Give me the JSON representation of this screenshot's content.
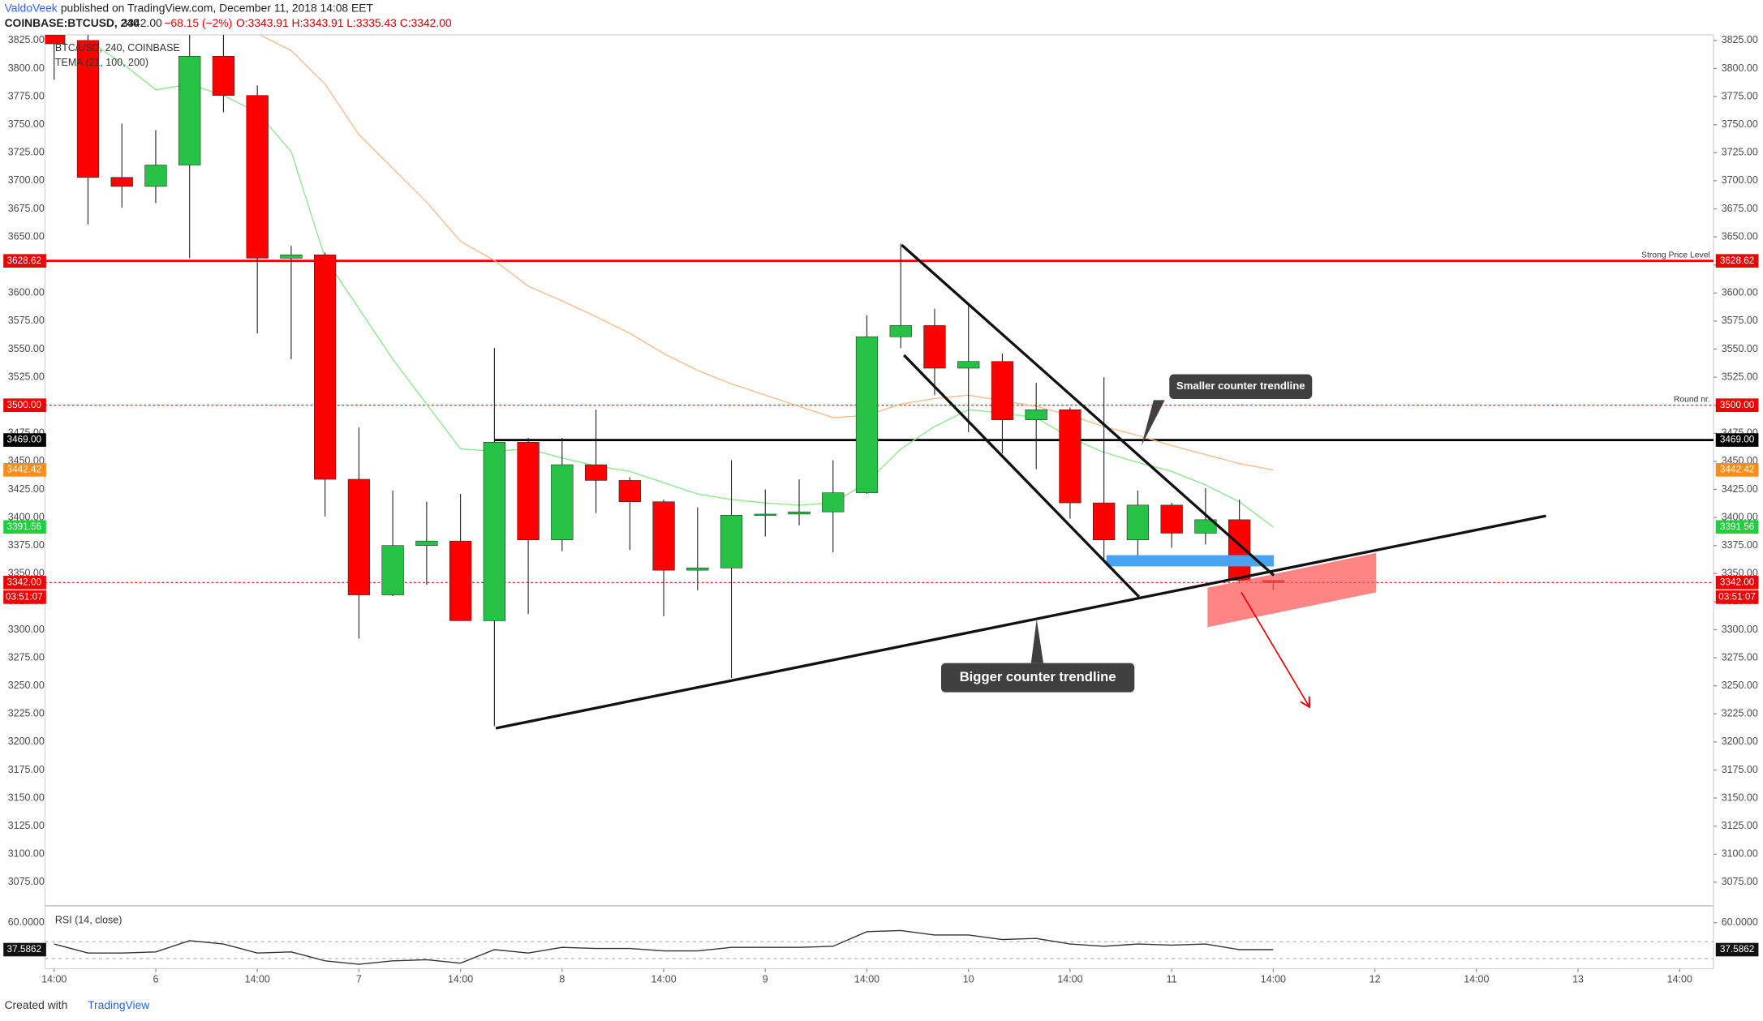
{
  "header": {
    "author": "ValdoVeek",
    "published": "published on TradingView.com, December 11, 2018 14:08 EET",
    "symbol": "COINBASE:BTCUSD, 240",
    "last": "3342.00",
    "change": "−68.15 (−2%)",
    "ohlc": "O:3343.91 H:3343.91 L:3335.43 C:3342.00"
  },
  "chart_data": [
    {
      "type": "candlestick",
      "title": "BTC/USD, 240, COINBASE",
      "subtitle": "TEMA (21, 100, 200)",
      "x": [
        0,
        1,
        2,
        3,
        4,
        5,
        6,
        7,
        8,
        9,
        10,
        11,
        12,
        13,
        14,
        15,
        16,
        17,
        18,
        19,
        20,
        21,
        22,
        23,
        24,
        25,
        26,
        27,
        28,
        29,
        30,
        31,
        32,
        33,
        34,
        35,
        36
      ],
      "open": [
        3830,
        3825,
        3703,
        3695,
        3714,
        3811,
        3776,
        3631,
        3634,
        3434,
        3331,
        3375,
        3379,
        3308,
        3467,
        3380,
        3447,
        3433,
        3414,
        3353,
        3355,
        3402,
        3403,
        3405,
        3422,
        3561,
        3571,
        3533,
        3539,
        3487,
        3496,
        3413,
        3380,
        3411,
        3386,
        3398,
        3343.91
      ],
      "high": [
        3840,
        3840,
        3751,
        3745,
        3840,
        3835,
        3785,
        3642,
        3636,
        3480,
        3424,
        3414,
        3421,
        3551,
        3471,
        3471,
        3496,
        3436,
        3416,
        3409,
        3451,
        3425,
        3434,
        3451,
        3580,
        3644,
        3586,
        3589,
        3546,
        3520,
        3498,
        3525,
        3424,
        3413,
        3426,
        3416,
        3343.91
      ],
      "low": [
        3790,
        3661,
        3676,
        3680,
        3631,
        3761,
        3564,
        3541,
        3401,
        3292,
        3330,
        3340,
        3308,
        3214,
        3314,
        3370,
        3404,
        3371,
        3312,
        3335,
        3257,
        3383,
        3393,
        3369,
        3421,
        3551,
        3509,
        3476,
        3457,
        3443,
        3399,
        3363,
        3365,
        3373,
        3376,
        3341,
        3335.43
      ],
      "close": [
        3822,
        3703,
        3695,
        3714,
        3811,
        3776,
        3631,
        3634,
        3434,
        3331,
        3375,
        3379,
        3308,
        3467,
        3380,
        3447,
        3433,
        3414,
        3353,
        3355,
        3402,
        3403,
        3405,
        3422,
        3561,
        3571,
        3533,
        3539,
        3487,
        3496,
        3413,
        3380,
        3411,
        3386,
        3398,
        3344,
        3342.0
      ],
      "up_color": "#26c245",
      "down_color": "#ff0000",
      "overlays": [
        {
          "color": "#8ee88e",
          "values": [
            null,
            3825,
            3805,
            3781,
            3786,
            3776,
            3761,
            3726,
            3631,
            3586,
            3541,
            3501,
            3461,
            3459,
            3461,
            3453,
            3446,
            3441,
            3431,
            3421,
            3416,
            3413,
            3411,
            3413,
            3431,
            3461,
            3481,
            3496,
            3493,
            3489,
            3471,
            3458,
            3449,
            3441,
            3429,
            3414,
            3391.56
          ],
          "last_label": "3391.56"
        },
        {
          "color": "#ffb98a",
          "values": [
            null,
            null,
            null,
            null,
            null,
            null,
            3831,
            3816,
            3786,
            3741,
            3711,
            3681,
            3646,
            3629,
            3606,
            3593,
            3579,
            3564,
            3546,
            3531,
            3519,
            3509,
            3499,
            3489,
            3491,
            3501,
            3506,
            3509,
            3504,
            3499,
            3491,
            3481,
            3473,
            3464,
            3456,
            3448,
            3442.42
          ],
          "last_label": "3442.42",
          "tag_color": "#ff8c1a"
        }
      ],
      "xlim": [
        -0.27,
        49.0
      ],
      "ylim": [
        3055,
        3830
      ],
      "yticks": [
        {
          "value": 3075,
          "label": "3075.00"
        },
        {
          "value": 3100,
          "label": "3100.00"
        },
        {
          "value": 3125,
          "label": "3125.00"
        },
        {
          "value": 3150,
          "label": "3150.00"
        },
        {
          "value": 3175,
          "label": "3175.00"
        },
        {
          "value": 3200,
          "label": "3200.00"
        },
        {
          "value": 3225,
          "label": "3225.00"
        },
        {
          "value": 3250,
          "label": "3250.00"
        },
        {
          "value": 3275,
          "label": "3275.00"
        },
        {
          "value": 3300,
          "label": "3300.00"
        },
        {
          "value": 3325,
          "label": "3325.00"
        },
        {
          "value": 3350,
          "label": "3350.00"
        },
        {
          "value": 3375,
          "label": "3375.00"
        },
        {
          "value": 3400,
          "label": "3400.00"
        },
        {
          "value": 3425,
          "label": "3425.00"
        },
        {
          "value": 3450,
          "label": "3450.00"
        },
        {
          "value": 3475,
          "label": "3475.00"
        },
        {
          "value": 3500,
          "label": "3500.00"
        },
        {
          "value": 3525,
          "label": "3525.00"
        },
        {
          "value": 3550,
          "label": "3550.00"
        },
        {
          "value": 3575,
          "label": "3575.00"
        },
        {
          "value": 3600,
          "label": "3600.00"
        },
        {
          "value": 3625,
          "label": "3625.00"
        },
        {
          "value": 3650,
          "label": "3650.00"
        },
        {
          "value": 3675,
          "label": "3675.00"
        },
        {
          "value": 3700,
          "label": "3700.00"
        },
        {
          "value": 3725,
          "label": "3725.00"
        },
        {
          "value": 3750,
          "label": "3750.00"
        },
        {
          "value": 3775,
          "label": "3775.00"
        },
        {
          "value": 3800,
          "label": "3800.00"
        },
        {
          "value": 3825,
          "label": "3825.00"
        }
      ],
      "levels": [
        {
          "value": 3628.62,
          "label": "3628.62",
          "color": "#f00000",
          "dashed": false,
          "text": "Strong Price Level"
        },
        {
          "value": 3500,
          "label": "3500.00",
          "color": "#f00000",
          "dashed": true,
          "text": "Round nr."
        },
        {
          "value": 3469,
          "label": "3469.00",
          "color": "#000000",
          "dashed": false
        },
        {
          "value": 3342,
          "label": "3342.00",
          "color": "#f00000",
          "dashed": true,
          "countdown": "03:51:07"
        }
      ],
      "annotations": [
        "Smaller counter trendline",
        "Bigger counter trendline"
      ]
    },
    {
      "type": "line",
      "title": "RSI (14, close)",
      "x": [
        0,
        1,
        2,
        3,
        4,
        5,
        6,
        7,
        8,
        9,
        10,
        11,
        12,
        13,
        14,
        15,
        16,
        17,
        18,
        19,
        20,
        21,
        22,
        23,
        24,
        25,
        26,
        27,
        28,
        29,
        30,
        31,
        32,
        33,
        34,
        35,
        36
      ],
      "values": [
        42.3,
        34.8,
        34.8,
        35.7,
        45.1,
        42.3,
        34.8,
        35.7,
        28.2,
        25.4,
        28.2,
        29.2,
        26.4,
        37.6,
        34.8,
        39.5,
        38.5,
        38.5,
        36.6,
        36.6,
        39.5,
        39.5,
        39.5,
        40.4,
        52.5,
        53.5,
        49.7,
        49.7,
        46.0,
        46.9,
        42.3,
        40.4,
        42.3,
        41.3,
        42.3,
        37.6,
        37.5862
      ],
      "color": "#333333",
      "xlim": [
        -0.27,
        49.0
      ],
      "ylim": [
        21.7,
        73.1
      ],
      "yticks": [
        {
          "value": 60,
          "label": "60.0000"
        }
      ],
      "xticks": [
        {
          "value": 0,
          "label": "14:00"
        },
        {
          "value": 3,
          "label": "6"
        },
        {
          "value": 6,
          "label": "14:00"
        },
        {
          "value": 9,
          "label": "7"
        },
        {
          "value": 12,
          "label": "14:00"
        },
        {
          "value": 15,
          "label": "8"
        },
        {
          "value": 18,
          "label": "14:00"
        },
        {
          "value": 21,
          "label": "9"
        },
        {
          "value": 24,
          "label": "14:00"
        },
        {
          "value": 27,
          "label": "10"
        },
        {
          "value": 30,
          "label": "14:00"
        },
        {
          "value": 33,
          "label": "11"
        },
        {
          "value": 36,
          "label": "14:00"
        },
        {
          "value": 39,
          "label": "12"
        },
        {
          "value": 42,
          "label": "14:00"
        },
        {
          "value": 45,
          "label": "13"
        },
        {
          "value": 48,
          "label": "14:00"
        }
      ]
    }
  ],
  "footer": {
    "prefix": "Created with",
    "brand": "TradingView"
  }
}
